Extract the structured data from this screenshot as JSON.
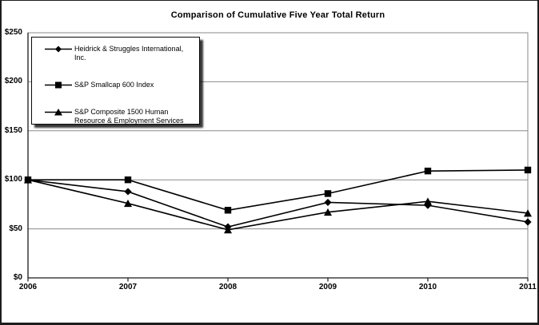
{
  "chart_data": {
    "type": "line",
    "title": "Comparison of Cumulative Five Year Total Return",
    "x_labels": [
      "2006",
      "2007",
      "2008",
      "2009",
      "2010",
      "2011"
    ],
    "y_tick_labels": [
      "$0",
      "$50",
      "$100",
      "$150",
      "$200",
      "$250"
    ],
    "ylim": [
      0,
      250
    ],
    "y_tick_step": 50,
    "grid": true,
    "legend_position": "top-left",
    "colors": {
      "series_line": "#000000",
      "marker_fill": "#000000",
      "grid": "#8a8a8a",
      "frame": "#8a8a8a",
      "axis": "#1a1a1a",
      "background": "#ffffff",
      "legend_shadow": "#000000"
    },
    "series": [
      {
        "name": "Heidrick & Struggles International, Inc.",
        "marker": "diamond",
        "values": [
          100,
          88,
          52,
          77,
          74,
          57
        ]
      },
      {
        "name": "S&P Smallcap 600 Index",
        "marker": "square",
        "values": [
          100,
          100,
          69,
          86,
          109,
          110
        ]
      },
      {
        "name": "S&P Composite 1500 Human Resource & Employment Services",
        "marker": "triangle",
        "values": [
          100,
          76,
          49,
          67,
          78,
          66
        ]
      }
    ]
  }
}
